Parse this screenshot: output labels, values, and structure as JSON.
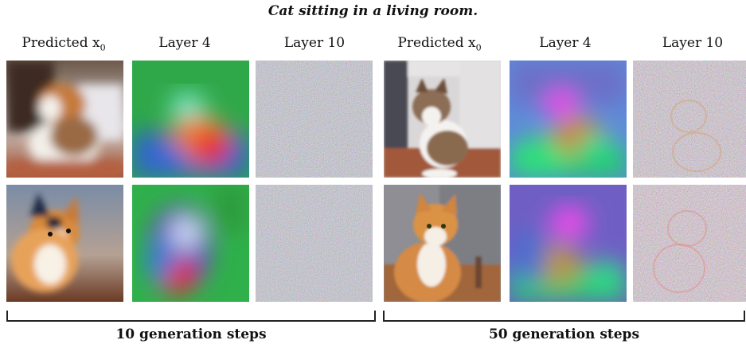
{
  "title": "Cat sitting in a living room.",
  "columns": [
    {
      "label": "Predicted x",
      "subscript": "0"
    },
    {
      "label": "Layer 4"
    },
    {
      "label": "Layer 10"
    },
    {
      "label": "Predicted x",
      "subscript": "0"
    },
    {
      "label": "Layer 4"
    },
    {
      "label": "Layer 10"
    }
  ],
  "groups": [
    {
      "label": "10 generation steps"
    },
    {
      "label": "50 generation steps"
    }
  ]
}
